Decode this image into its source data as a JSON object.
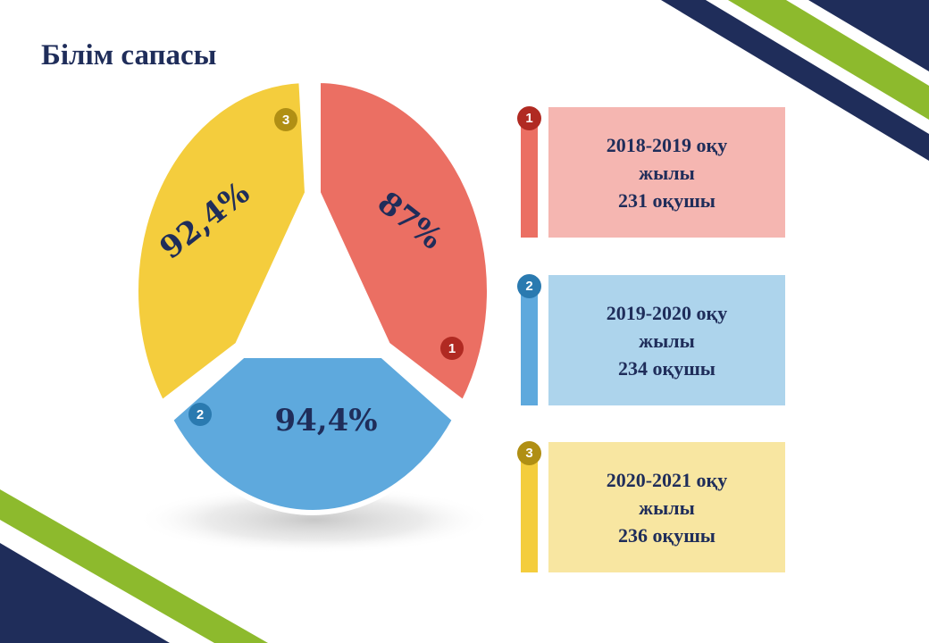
{
  "slide": {
    "title": "Білім сапасы"
  },
  "colors": {
    "navy": "#1f2d5a",
    "green": "#8dba2d",
    "red": "#eb6f63",
    "blue": "#5ea9dd",
    "yellow": "#f4cd3d"
  },
  "chart_data": {
    "type": "pie",
    "labels": [
      "87%",
      "94,4%",
      "92,4%"
    ],
    "values": [
      87,
      94.4,
      92.4
    ],
    "markers": [
      "1",
      "2",
      "3"
    ],
    "colors": [
      "#eb6f63",
      "#5ea9dd",
      "#f4cd3d"
    ]
  },
  "legend": [
    {
      "number": "1",
      "lines": [
        "2018-2019 оқу",
        "жылы",
        "231 оқушы"
      ],
      "box_color": "#f5b6b1",
      "bar_color": "#eb6f63",
      "badge_color": "#b02a22"
    },
    {
      "number": "2",
      "lines": [
        "2019-2020 оқу",
        "жылы",
        "234 оқушы"
      ],
      "box_color": "#add4ec",
      "bar_color": "#5ea9dd",
      "badge_color": "#2a7ab0"
    },
    {
      "number": "3",
      "lines": [
        "2020-2021 оқу",
        "жылы",
        "236 оқушы"
      ],
      "box_color": "#f8e6a1",
      "bar_color": "#f4cd3d",
      "badge_color": "#b08f14"
    }
  ]
}
